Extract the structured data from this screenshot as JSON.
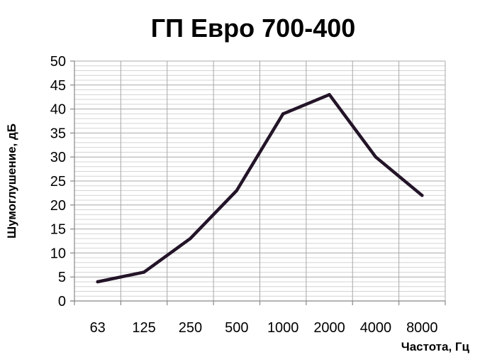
{
  "chart_data": {
    "type": "line",
    "title": "ГП Евро 700-400",
    "xlabel": "Частота, Гц",
    "ylabel": "Шумоглушение, дБ",
    "categories": [
      "63",
      "125",
      "250",
      "500",
      "1000",
      "2000",
      "4000",
      "8000"
    ],
    "series": [
      {
        "values": [
          4,
          6,
          13,
          23,
          39,
          43,
          30,
          22
        ]
      }
    ],
    "ylim": [
      0,
      50
    ],
    "y_ticks": [
      "0",
      "5",
      "10",
      "15",
      "20",
      "25",
      "30",
      "35",
      "40",
      "45",
      "50"
    ],
    "grid": true,
    "legend": "none",
    "colors": {
      "line": "#231428",
      "grid": "#c8c8c8",
      "axis": "#888888"
    }
  }
}
